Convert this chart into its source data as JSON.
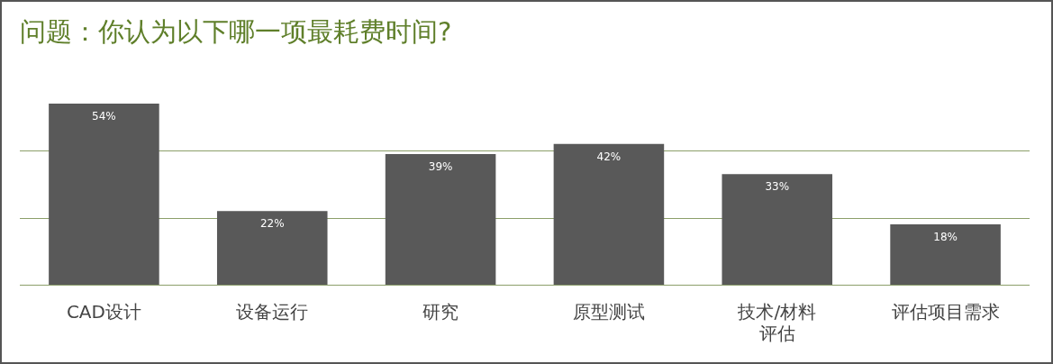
{
  "chart_data": {
    "type": "bar",
    "title": "问题：你认为以下哪一项最耗费时间?",
    "categories": [
      "CAD设计",
      "设备运行",
      "研究",
      "原型测试",
      "技术/材料评估",
      "评估项目需求"
    ],
    "series": [
      {
        "color": "#595959",
        "values": [
          54,
          22,
          39,
          42,
          33,
          18
        ],
        "value_labels": [
          "54%",
          "22%",
          "39%",
          "42%",
          "33%",
          "18%"
        ]
      }
    ],
    "ref_lines": [
      {
        "axis": "y",
        "value": 0,
        "color": "#8c9f6a"
      },
      {
        "axis": "y",
        "value": 20,
        "color": "#8c9f6a"
      },
      {
        "axis": "y",
        "value": 40,
        "color": "#8c9f6a"
      }
    ],
    "tick_labels": "x",
    "legend": false
  }
}
